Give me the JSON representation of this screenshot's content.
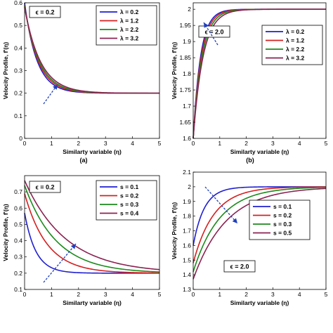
{
  "colors": {
    "blue": "#1f1fd1",
    "red": "#d42020",
    "green": "#1c8a1c",
    "maroon": "#8b2252",
    "arrow": "#1f3fbf"
  },
  "chart_data": [
    {
      "type": "line",
      "panel": "a",
      "caption": "(a)",
      "xlabel": "Similarty variable (η)",
      "ylabel": "Velocity Profile, f'(η)",
      "xlim": [
        0,
        5
      ],
      "ylim": [
        0,
        0.6
      ],
      "xticks": [
        "0",
        "1",
        "2",
        "3",
        "4",
        "5"
      ],
      "yticks": [
        "0",
        "0.1",
        "0.2",
        "0.3",
        "0.4",
        "0.5",
        "0.6"
      ],
      "annotation": "ϵ = 0.2",
      "legend_position": "top-right",
      "grid": false,
      "series": [
        {
          "name": "λ = 0.2",
          "color": "blue",
          "y0": 0.6,
          "yinf": 0.2,
          "k": 2.2
        },
        {
          "name": "λ = 1.2",
          "color": "red",
          "y0": 0.59,
          "yinf": 0.2,
          "k": 2.0
        },
        {
          "name": "λ = 2.2",
          "color": "green",
          "y0": 0.585,
          "yinf": 0.2,
          "k": 1.85
        },
        {
          "name": "λ = 3.2",
          "color": "maroon",
          "y0": 0.58,
          "yinf": 0.2,
          "k": 1.7
        }
      ]
    },
    {
      "type": "line",
      "panel": "b",
      "caption": "(b)",
      "xlabel": "Similarty variable (η)",
      "ylabel": "Velocity Profile, f'(η)",
      "xlim": [
        0,
        5
      ],
      "ylim": [
        1.6,
        2.02
      ],
      "xticks": [
        "0",
        "1",
        "2",
        "3",
        "4",
        "5"
      ],
      "yticks": [
        "1.6",
        "1.65",
        "1.7",
        "1.75",
        "1.8",
        "1.85",
        "1.9",
        "1.95",
        "2"
      ],
      "annotation": "ϵ = 2.0",
      "legend_position": "top-right",
      "grid": false,
      "series": [
        {
          "name": "λ = 0.2",
          "color": "blue",
          "y0": 1.6,
          "yinf": 2.0,
          "k": 3.6
        },
        {
          "name": "λ = 1.2",
          "color": "red",
          "y0": 1.6,
          "yinf": 2.0,
          "k": 3.3
        },
        {
          "name": "λ = 2.2",
          "color": "green",
          "y0": 1.6,
          "yinf": 2.0,
          "k": 3.0
        },
        {
          "name": "λ = 3.2",
          "color": "maroon",
          "y0": 1.6,
          "yinf": 2.0,
          "k": 2.7
        }
      ]
    },
    {
      "type": "line",
      "panel": "c",
      "caption": "",
      "xlabel": "Similarty variable (η)",
      "ylabel": "Velocity Profile, f'(η)",
      "xlim": [
        0,
        5
      ],
      "ylim": [
        0.1,
        0.8
      ],
      "xticks": [
        "0",
        "1",
        "2",
        "3",
        "4",
        "5"
      ],
      "yticks": [
        "0.1",
        "0.2",
        "0.3",
        "0.4",
        "0.5",
        "0.6",
        "0.7"
      ],
      "annotation": "ϵ = 0.2",
      "legend_position": "top-right",
      "grid": false,
      "series": [
        {
          "name": "s = 0.1",
          "color": "blue",
          "y0": 0.57,
          "yinf": 0.2,
          "k": 2.4
        },
        {
          "name": "s = 0.2",
          "color": "red",
          "y0": 0.69,
          "yinf": 0.2,
          "k": 1.2
        },
        {
          "name": "s = 0.3",
          "color": "green",
          "y0": 0.74,
          "yinf": 0.2,
          "k": 0.85
        },
        {
          "name": "s = 0.4",
          "color": "maroon",
          "y0": 0.77,
          "yinf": 0.2,
          "k": 0.65
        }
      ]
    },
    {
      "type": "line",
      "panel": "d",
      "caption": "",
      "xlabel": "Similarty variable (η)",
      "ylabel": "Velocity Profile, f'(η)",
      "xlim": [
        0,
        5
      ],
      "ylim": [
        1.3,
        2.1
      ],
      "xticks": [
        "0",
        "1",
        "2",
        "3",
        "4",
        "5"
      ],
      "yticks": [
        "1.3",
        "1.4",
        "1.5",
        "1.6",
        "1.7",
        "1.8",
        "1.9",
        "2",
        "2.1"
      ],
      "annotation": "ϵ = 2.0",
      "legend_position": "right",
      "grid": false,
      "series": [
        {
          "name": "s = 0.1",
          "color": "blue",
          "y0": 1.6,
          "yinf": 2.0,
          "k": 2.4
        },
        {
          "name": "s = 0.2",
          "color": "red",
          "y0": 1.48,
          "yinf": 2.0,
          "k": 1.3
        },
        {
          "name": "s = 0.3",
          "color": "green",
          "y0": 1.42,
          "yinf": 2.0,
          "k": 1.0
        },
        {
          "name": "s = 0.5",
          "color": "maroon",
          "y0": 1.37,
          "yinf": 2.0,
          "k": 0.8
        }
      ]
    }
  ]
}
